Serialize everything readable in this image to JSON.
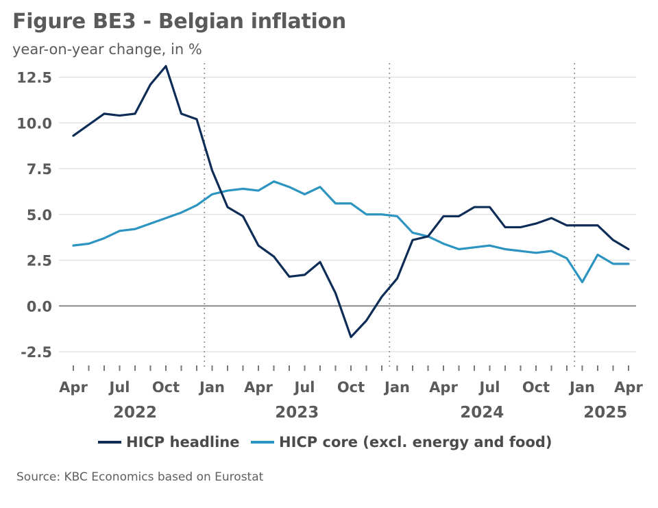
{
  "title": "Figure BE3 - Belgian inflation",
  "subtitle": "year-on-year change, in %",
  "source": "Source: KBC Economics based on Eurostat",
  "colors": {
    "headline": "#0e2d56",
    "core": "#2b94c0",
    "grid": "#dddddd",
    "zero": "#888888",
    "separator": "#888888"
  },
  "chart_data": {
    "type": "line",
    "x": [
      "2022-04",
      "2022-05",
      "2022-06",
      "2022-07",
      "2022-08",
      "2022-09",
      "2022-10",
      "2022-11",
      "2022-12",
      "2023-01",
      "2023-02",
      "2023-03",
      "2023-04",
      "2023-05",
      "2023-06",
      "2023-07",
      "2023-08",
      "2023-09",
      "2023-10",
      "2023-11",
      "2023-12",
      "2024-01",
      "2024-02",
      "2024-03",
      "2024-04",
      "2024-05",
      "2024-06",
      "2024-07",
      "2024-08",
      "2024-09",
      "2024-10",
      "2024-11",
      "2024-12",
      "2025-01",
      "2025-02",
      "2025-03",
      "2025-04"
    ],
    "series": [
      {
        "name": "HICP headline",
        "values": [
          9.3,
          9.9,
          10.5,
          10.4,
          10.5,
          12.1,
          13.1,
          10.5,
          10.2,
          7.4,
          5.4,
          4.9,
          3.3,
          2.7,
          1.6,
          1.7,
          2.4,
          0.7,
          -1.7,
          -0.8,
          0.5,
          1.5,
          3.6,
          3.8,
          4.9,
          4.9,
          5.4,
          5.4,
          4.3,
          4.3,
          4.5,
          4.8,
          4.4,
          4.4,
          4.4,
          3.6,
          3.1
        ]
      },
      {
        "name": "HICP core (excl. energy and food)",
        "values": [
          3.3,
          3.4,
          3.7,
          4.1,
          4.2,
          4.5,
          4.8,
          5.1,
          5.5,
          6.1,
          6.3,
          6.4,
          6.3,
          6.8,
          6.5,
          6.1,
          6.5,
          5.6,
          5.6,
          5.0,
          5.0,
          4.9,
          4.0,
          3.8,
          3.4,
          3.1,
          3.2,
          3.3,
          3.1,
          3.0,
          2.9,
          3.0,
          2.6,
          1.3,
          2.8,
          2.3,
          2.3
        ]
      }
    ],
    "yticks": [
      "12.5",
      "10.0",
      "7.5",
      "5.0",
      "2.5",
      "0.0",
      "-2.5"
    ],
    "ylim": [
      -3.2,
      13.3
    ],
    "xtick_labels": [
      "Apr",
      "Jul",
      "Oct",
      "Jan",
      "Apr",
      "Jul",
      "Oct",
      "Jan",
      "Apr",
      "Jul",
      "Oct",
      "Jan",
      "Apr"
    ],
    "year_labels": [
      "2022",
      "2023",
      "2024",
      "2025"
    ],
    "grid": true,
    "legend_position": "bottom"
  }
}
